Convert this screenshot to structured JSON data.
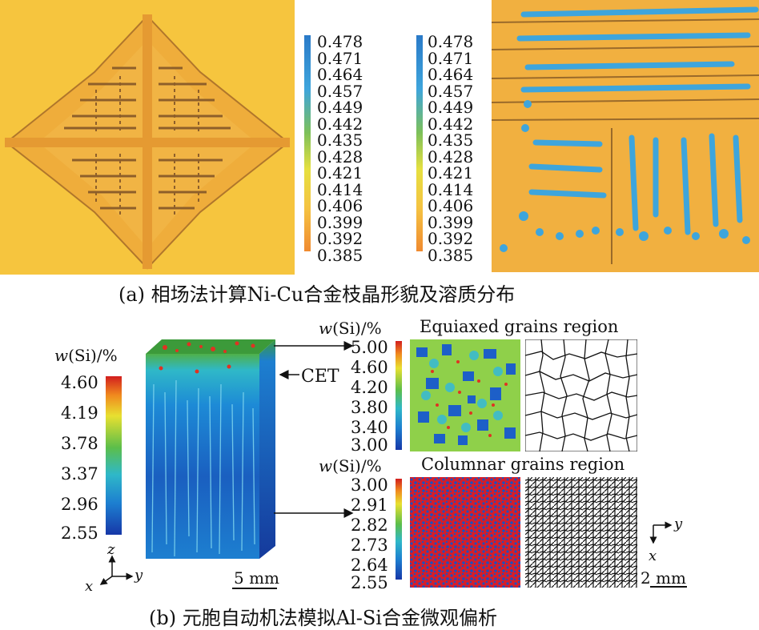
{
  "panel_a": {
    "legend_ticks": [
      "0.478",
      "0.471",
      "0.464",
      "0.457",
      "0.449",
      "0.442",
      "0.435",
      "0.428",
      "0.421",
      "0.414",
      "0.406",
      "0.399",
      "0.392",
      "0.385"
    ],
    "caption": "(a) 相场法计算Ni-Cu合金枝晶形貌及溶质分布",
    "colors": {
      "background": "#f5c342",
      "dendrite": "#f0a93a",
      "solute_rich": "#3ea5dc",
      "stripe": "#9a6a2a"
    }
  },
  "panel_b": {
    "left_legend": {
      "title_var": "w",
      "title_rest": "(Si)/%",
      "ticks": [
        "4.60",
        "4.19",
        "3.78",
        "3.37",
        "2.96",
        "2.55"
      ]
    },
    "cet_label": "CET",
    "axes_left": {
      "z": "z",
      "x": "x",
      "y": "y"
    },
    "scale_left": "5 mm",
    "equiaxed": {
      "title": "Equiaxed grains region",
      "legend_title_var": "w",
      "legend_title_rest": "(Si)/%",
      "ticks": [
        "5.00",
        "4.60",
        "4.20",
        "3.80",
        "3.40",
        "3.00"
      ]
    },
    "columnar": {
      "title": "Columnar grains region",
      "legend_title_var": "w",
      "legend_title_rest": "(Si)/%",
      "ticks": [
        "3.00",
        "2.91",
        "2.82",
        "2.73",
        "2.64",
        "2.55"
      ]
    },
    "axes_right": {
      "y": "y",
      "x": "x"
    },
    "scale_right": "2 mm",
    "caption": "(b) 元胞自动机法模拟Al-Si合金微观偏析"
  }
}
